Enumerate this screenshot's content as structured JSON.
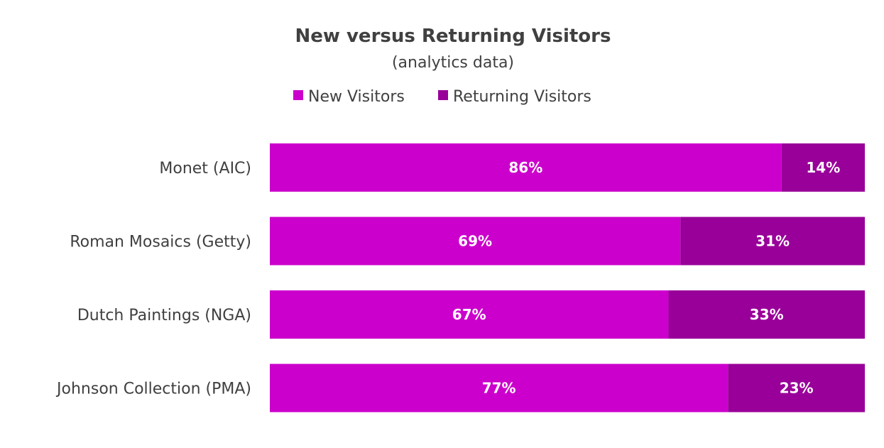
{
  "chart_data": {
    "type": "bar",
    "orientation": "horizontal",
    "stacked": true,
    "title": "New versus Returning Visitors",
    "subtitle": "(analytics data)",
    "categories": [
      "Monet (AIC)",
      "Roman Mosaics (Getty)",
      "Dutch Paintings (NGA)",
      "Johnson Collection (PMA)"
    ],
    "series": [
      {
        "name": "New Visitors",
        "values": [
          86,
          69,
          67,
          77
        ],
        "labels": [
          "86%",
          "69%",
          "67%",
          "77%"
        ],
        "color": "#CC00CC"
      },
      {
        "name": "Returning Visitors",
        "values": [
          14,
          31,
          33,
          23
        ],
        "labels": [
          "14%",
          "31%",
          "33%",
          "23%"
        ],
        "color": "#990099"
      }
    ],
    "xlim": [
      0,
      100
    ],
    "grid": false,
    "legend_position": "top-center"
  }
}
